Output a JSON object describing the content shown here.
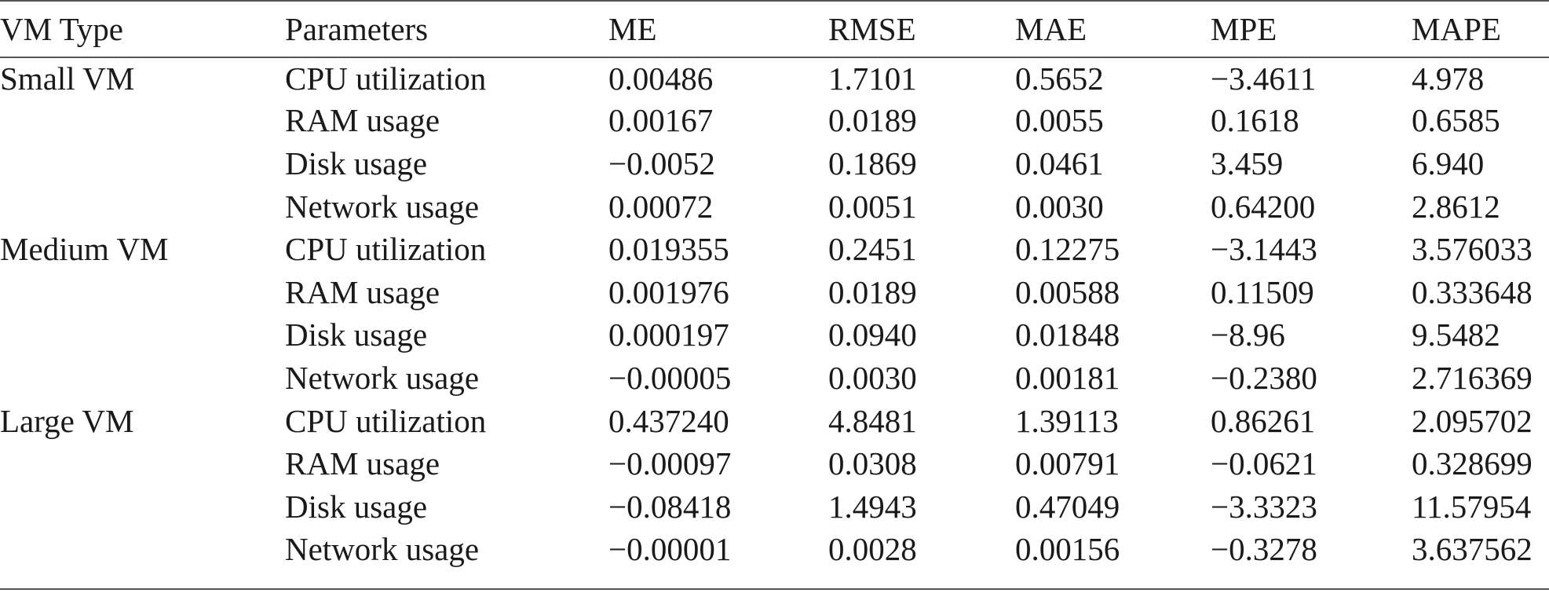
{
  "table": {
    "headers": [
      "VM Type",
      "Parameters",
      "ME",
      "RMSE",
      "MAE",
      "MPE",
      "MAPE"
    ],
    "rows": [
      [
        "Small VM",
        "CPU utilization",
        "0.00486",
        "1.7101",
        "0.5652",
        "−3.4611",
        "4.978"
      ],
      [
        "",
        "RAM usage",
        "0.00167",
        "0.0189",
        "0.0055",
        "0.1618",
        "0.6585"
      ],
      [
        "",
        "Disk usage",
        "−0.0052",
        "0.1869",
        "0.0461",
        "3.459",
        "6.940"
      ],
      [
        "",
        "Network usage",
        "0.00072",
        "0.0051",
        "0.0030",
        "0.64200",
        "2.8612"
      ],
      [
        "Medium VM",
        "CPU utilization",
        "0.019355",
        "0.2451",
        "0.12275",
        "−3.1443",
        "3.576033"
      ],
      [
        "",
        "RAM usage",
        "0.001976",
        "0.0189",
        "0.00588",
        "0.11509",
        "0.333648"
      ],
      [
        "",
        "Disk usage",
        "0.000197",
        "0.0940",
        "0.01848",
        "−8.96",
        "9.5482"
      ],
      [
        "",
        "Network usage",
        "−0.00005",
        "0.0030",
        "0.00181",
        "−0.2380",
        "2.716369"
      ],
      [
        "Large VM",
        "CPU utilization",
        "0.437240",
        "4.8481",
        "1.39113",
        "0.86261",
        "2.095702"
      ],
      [
        "",
        "RAM usage",
        "−0.00097",
        "0.0308",
        "0.00791",
        "−0.0621",
        "0.328699"
      ],
      [
        "",
        "Disk usage",
        "−0.08418",
        "1.4943",
        "0.47049",
        "−3.3323",
        "11.57954"
      ],
      [
        "",
        "Network usage",
        "−0.00001",
        "0.0028",
        "0.00156",
        "−0.3278",
        "3.637562"
      ]
    ]
  }
}
